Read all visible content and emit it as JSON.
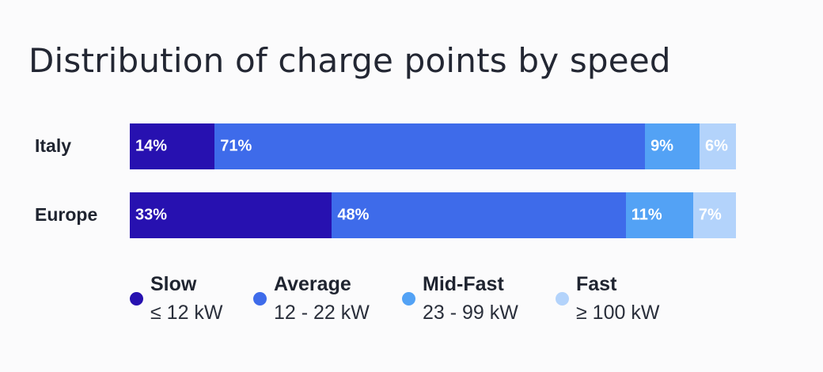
{
  "chart_data": {
    "type": "bar",
    "orientation": "horizontal",
    "stacked": true,
    "normalized_percent": true,
    "title": "Distribution of charge points by speed",
    "categories": [
      "Italy",
      "Europe"
    ],
    "series": [
      {
        "name": "Slow",
        "range": "≤ 12 kW",
        "color": "#2711b0",
        "values": [
          14,
          33
        ],
        "labels": [
          "14%",
          "33%"
        ]
      },
      {
        "name": "Average",
        "range": "12 - 22 kW",
        "color": "#3e6bea",
        "values": [
          71,
          48
        ],
        "labels": [
          "71%",
          "48%"
        ]
      },
      {
        "name": "Mid-Fast",
        "range": "23 - 99 kW",
        "color": "#53a2f5",
        "values": [
          9,
          11
        ],
        "labels": [
          "9%",
          "11%"
        ]
      },
      {
        "name": "Fast",
        "range": "≥ 100 kW",
        "color": "#b3d3fb",
        "values": [
          6,
          7
        ],
        "labels": [
          "6%",
          "7%"
        ]
      }
    ],
    "legend_position": "bottom"
  }
}
